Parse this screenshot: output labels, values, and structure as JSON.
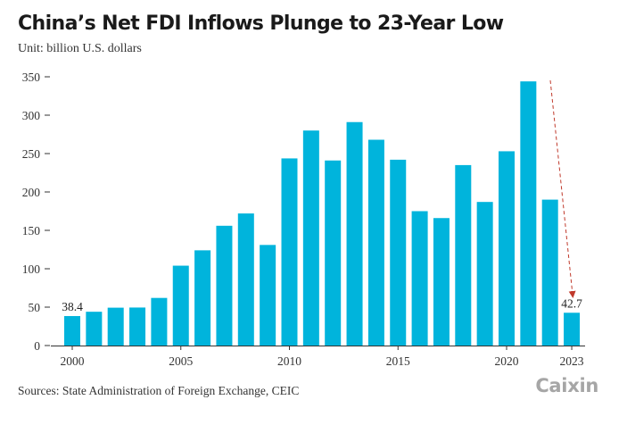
{
  "header": {
    "title": "China’s Net FDI Inflows Plunge to 23-Year Low",
    "unit": "Unit: billion U.S. dollars"
  },
  "footer": {
    "source": "Sources: State Administration of Foreign Exchange, CEIC",
    "logo": "Caixin"
  },
  "colors": {
    "bar": "#00b4dc",
    "arrow": "#c0392b",
    "axis": "#333333"
  },
  "chart_data": {
    "type": "bar",
    "title": "China’s Net FDI Inflows Plunge to 23-Year Low",
    "subtitle": "Unit: billion U.S. dollars",
    "xlabel": "",
    "ylabel": "",
    "categories": [
      2000,
      2001,
      2002,
      2003,
      2004,
      2005,
      2006,
      2007,
      2008,
      2009,
      2010,
      2011,
      2012,
      2013,
      2014,
      2015,
      2016,
      2017,
      2018,
      2019,
      2020,
      2021,
      2022,
      2023
    ],
    "values": [
      38.4,
      44,
      49.3,
      49.5,
      62,
      104,
      124,
      156,
      172,
      131,
      243.7,
      280,
      241,
      291,
      268,
      242,
      175,
      166,
      235,
      187,
      253,
      344,
      190,
      42.7
    ],
    "ylim": [
      0,
      350
    ],
    "yticks": [
      0,
      50,
      100,
      150,
      200,
      250,
      300,
      350
    ],
    "xtick_labels": [
      "2000",
      "2005",
      "2010",
      "2015",
      "2020",
      "2023"
    ],
    "data_labels": [
      {
        "category": 2000,
        "text": "38.4"
      },
      {
        "category": 2023,
        "text": "42.7"
      }
    ],
    "grid": false,
    "legend": "none"
  }
}
